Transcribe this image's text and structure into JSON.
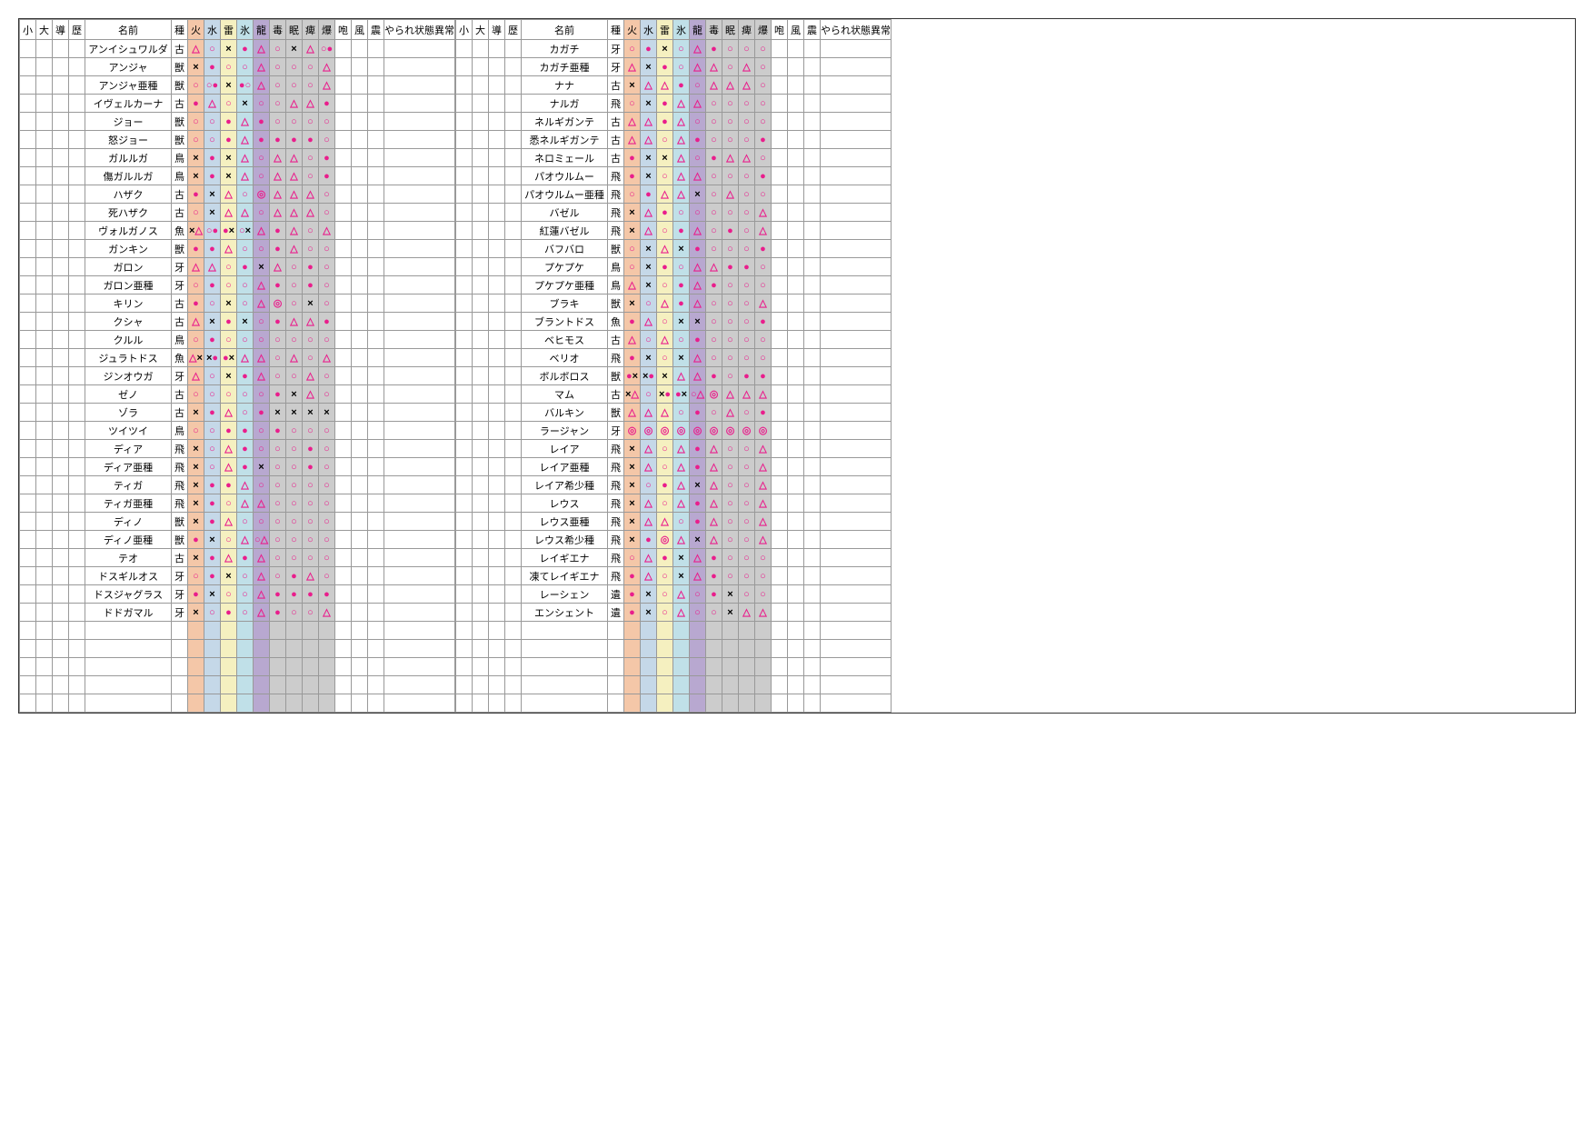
{
  "headers": [
    "小",
    "大",
    "導",
    "歴",
    "名前",
    "種",
    "火",
    "水",
    "雷",
    "氷",
    "龍",
    "毒",
    "眠",
    "痺",
    "爆",
    "咆",
    "風",
    "震",
    "やられ状態異常"
  ],
  "header_classes": [
    "c-sm",
    "c-sm",
    "c-sm",
    "c-sm",
    "c-name",
    "c-type",
    "c-elem fire",
    "c-elem water",
    "c-elem thunder",
    "c-elem ice",
    "c-elem dragon",
    "c-stat poison",
    "c-stat sleep",
    "c-stat para",
    "c-stat blast",
    "c-sm",
    "c-sm",
    "c-sm",
    "c-wide"
  ],
  "cell_classes": [
    "",
    "",
    "",
    "",
    "fire",
    "water",
    "thunder",
    "ice",
    "dragon",
    "poison",
    "sleep",
    "para",
    "blast",
    "",
    "",
    "",
    ""
  ],
  "colors": {
    "tri": "#e91e8c",
    "circ": "#e91e8c",
    "fcirc": "#e91e8c",
    "dcirc": "#e91e8c",
    "x": "#000",
    "empty": ""
  },
  "left": [
    {
      "n": "アンイシュワルダ",
      "t": "古",
      "e": [
        "△",
        "○",
        "×",
        "●",
        "△",
        "○",
        "×",
        "△",
        "○●"
      ]
    },
    {
      "n": "アンジャ",
      "t": "獣",
      "e": [
        "×",
        "●",
        "○",
        "○",
        "△",
        "○",
        "○",
        "○",
        "△"
      ]
    },
    {
      "n": "アンジャ亜種",
      "t": "獣",
      "e": [
        "○",
        "○●",
        "×",
        "●○",
        "△",
        "○",
        "○",
        "○",
        "△"
      ]
    },
    {
      "n": "イヴェルカーナ",
      "t": "古",
      "e": [
        "●",
        "△",
        "○",
        "×",
        "○",
        "○",
        "△",
        "△",
        "●"
      ]
    },
    {
      "n": "ジョー",
      "t": "獣",
      "e": [
        "○",
        "○",
        "●",
        "△",
        "●",
        "○",
        "○",
        "○",
        "○"
      ]
    },
    {
      "n": "怒ジョー",
      "t": "獣",
      "e": [
        "○",
        "○",
        "●",
        "△",
        "●",
        "●",
        "●",
        "●",
        "○"
      ]
    },
    {
      "n": "ガルルガ",
      "t": "鳥",
      "e": [
        "×",
        "●",
        "×",
        "△",
        "○",
        "△",
        "△",
        "○",
        "●"
      ]
    },
    {
      "n": "傷ガルルガ",
      "t": "鳥",
      "e": [
        "×",
        "●",
        "×",
        "△",
        "○",
        "△",
        "△",
        "○",
        "●"
      ]
    },
    {
      "n": "ハザク",
      "t": "古",
      "e": [
        "●",
        "×",
        "△",
        "○",
        "◎",
        "△",
        "△",
        "△",
        "○"
      ]
    },
    {
      "n": "死ハザク",
      "t": "古",
      "e": [
        "○",
        "×",
        "△",
        "△",
        "○",
        "△",
        "△",
        "△",
        "○"
      ]
    },
    {
      "n": "ヴォルガノス",
      "t": "魚",
      "e": [
        "×△",
        "○●",
        "●×",
        "○×",
        "△",
        "●",
        "△",
        "○",
        "△"
      ]
    },
    {
      "n": "ガンキン",
      "t": "獣",
      "e": [
        "●",
        "●",
        "△",
        "○",
        "○",
        "●",
        "△",
        "○",
        "○"
      ]
    },
    {
      "n": "ガロン",
      "t": "牙",
      "e": [
        "△",
        "△",
        "○",
        "●",
        "×",
        "△",
        "○",
        "●",
        "○"
      ]
    },
    {
      "n": "ガロン亜種",
      "t": "牙",
      "e": [
        "○",
        "●",
        "○",
        "○",
        "△",
        "●",
        "○",
        "●",
        "○"
      ]
    },
    {
      "n": "キリン",
      "t": "古",
      "e": [
        "●",
        "○",
        "×",
        "○",
        "△",
        "◎",
        "○",
        "×",
        "○"
      ]
    },
    {
      "n": "クシャ",
      "t": "古",
      "e": [
        "△",
        "×",
        "●",
        "×",
        "○",
        "●",
        "△",
        "△",
        "●"
      ]
    },
    {
      "n": "クルル",
      "t": "鳥",
      "e": [
        "○",
        "●",
        "○",
        "○",
        "○",
        "○",
        "○",
        "○",
        "○"
      ]
    },
    {
      "n": "ジュラトドス",
      "t": "魚",
      "e": [
        "△×",
        "×●",
        "●×",
        "△",
        "△",
        "○",
        "△",
        "○",
        "△"
      ]
    },
    {
      "n": "ジンオウガ",
      "t": "牙",
      "e": [
        "△",
        "○",
        "×",
        "●",
        "△",
        "○",
        "○",
        "△",
        "○"
      ]
    },
    {
      "n": "ゼノ",
      "t": "古",
      "e": [
        "○",
        "○",
        "○",
        "○",
        "○",
        "●",
        "×",
        "△",
        "○"
      ]
    },
    {
      "n": "ゾラ",
      "t": "古",
      "e": [
        "×",
        "●",
        "△",
        "○",
        "●",
        "×",
        "×",
        "×",
        "×"
      ]
    },
    {
      "n": "ツイツイ",
      "t": "鳥",
      "e": [
        "○",
        "○",
        "●",
        "●",
        "○",
        "●",
        "○",
        "○",
        "○"
      ]
    },
    {
      "n": "ディア",
      "t": "飛",
      "e": [
        "×",
        "○",
        "△",
        "●",
        "○",
        "○",
        "○",
        "●",
        "○"
      ]
    },
    {
      "n": "ディア亜種",
      "t": "飛",
      "e": [
        "×",
        "○",
        "△",
        "●",
        "×",
        "○",
        "○",
        "●",
        "○"
      ]
    },
    {
      "n": "ティガ",
      "t": "飛",
      "e": [
        "×",
        "●",
        "●",
        "△",
        "○",
        "○",
        "○",
        "○",
        "○"
      ]
    },
    {
      "n": "ティガ亜種",
      "t": "飛",
      "e": [
        "×",
        "●",
        "○",
        "△",
        "△",
        "○",
        "○",
        "○",
        "○"
      ]
    },
    {
      "n": "ディノ",
      "t": "獣",
      "e": [
        "×",
        "●",
        "△",
        "○",
        "○",
        "○",
        "○",
        "○",
        "○"
      ]
    },
    {
      "n": "ディノ亜種",
      "t": "獣",
      "e": [
        "●",
        "×",
        "○",
        "△",
        "○△",
        "○",
        "○",
        "○",
        "○"
      ]
    },
    {
      "n": "テオ",
      "t": "古",
      "e": [
        "×",
        "●",
        "△",
        "●",
        "△",
        "○",
        "○",
        "○",
        "○"
      ]
    },
    {
      "n": "ドスギルオス",
      "t": "牙",
      "e": [
        "○",
        "●",
        "×",
        "○",
        "△",
        "○",
        "●",
        "△",
        "○"
      ]
    },
    {
      "n": "ドスジャグラス",
      "t": "牙",
      "e": [
        "●",
        "×",
        "○",
        "○",
        "△",
        "●",
        "●",
        "●",
        "●"
      ]
    },
    {
      "n": "ドドガマル",
      "t": "牙",
      "e": [
        "×",
        "○",
        "●",
        "○",
        "△",
        "●",
        "○",
        "○",
        "△"
      ]
    }
  ],
  "right": [
    {
      "n": "カガチ",
      "t": "牙",
      "e": [
        "○",
        "●",
        "×",
        "○",
        "△",
        "●",
        "○",
        "○",
        "○"
      ]
    },
    {
      "n": "カガチ亜種",
      "t": "牙",
      "e": [
        "△",
        "×",
        "●",
        "○",
        "△",
        "△",
        "○",
        "△",
        "○"
      ]
    },
    {
      "n": "ナナ",
      "t": "古",
      "e": [
        "×",
        "△",
        "△",
        "●",
        "○",
        "△",
        "△",
        "△",
        "○"
      ]
    },
    {
      "n": "ナルガ",
      "t": "飛",
      "e": [
        "○",
        "×",
        "●",
        "△",
        "△",
        "○",
        "○",
        "○",
        "○"
      ]
    },
    {
      "n": "ネルギガンテ",
      "t": "古",
      "e": [
        "△",
        "△",
        "●",
        "△",
        "○",
        "○",
        "○",
        "○",
        "○"
      ]
    },
    {
      "n": "悉ネルギガンテ",
      "t": "古",
      "e": [
        "△",
        "△",
        "○",
        "△",
        "●",
        "○",
        "○",
        "○",
        "●"
      ]
    },
    {
      "n": "ネロミェール",
      "t": "古",
      "e": [
        "●",
        "×",
        "×",
        "△",
        "○",
        "●",
        "△",
        "△",
        "○"
      ]
    },
    {
      "n": "パオウルムー",
      "t": "飛",
      "e": [
        "●",
        "×",
        "○",
        "△",
        "△",
        "○",
        "○",
        "○",
        "●"
      ]
    },
    {
      "n": "パオウルムー亜種",
      "t": "飛",
      "e": [
        "○",
        "●",
        "△",
        "△",
        "×",
        "○",
        "△",
        "○",
        "○"
      ]
    },
    {
      "n": "バゼル",
      "t": "飛",
      "e": [
        "×",
        "△",
        "●",
        "○",
        "○",
        "○",
        "○",
        "○",
        "△"
      ]
    },
    {
      "n": "紅蓮バゼル",
      "t": "飛",
      "e": [
        "×",
        "△",
        "○",
        "●",
        "△",
        "○",
        "●",
        "○",
        "△"
      ]
    },
    {
      "n": "バフバロ",
      "t": "獣",
      "e": [
        "○",
        "×",
        "△",
        "×",
        "●",
        "○",
        "○",
        "○",
        "●"
      ]
    },
    {
      "n": "プケプケ",
      "t": "鳥",
      "e": [
        "○",
        "×",
        "●",
        "○",
        "△",
        "△",
        "●",
        "●",
        "○"
      ]
    },
    {
      "n": "プケプケ亜種",
      "t": "鳥",
      "e": [
        "△",
        "×",
        "○",
        "●",
        "△",
        "●",
        "○",
        "○",
        "○"
      ]
    },
    {
      "n": "ブラキ",
      "t": "獣",
      "e": [
        "×",
        "○",
        "△",
        "●",
        "△",
        "○",
        "○",
        "○",
        "△"
      ]
    },
    {
      "n": "ブラントドス",
      "t": "魚",
      "e": [
        "●",
        "△",
        "○",
        "×",
        "×",
        "○",
        "○",
        "○",
        "●"
      ]
    },
    {
      "n": "ベヒモス",
      "t": "古",
      "e": [
        "△",
        "○",
        "△",
        "○",
        "●",
        "○",
        "○",
        "○",
        "○"
      ]
    },
    {
      "n": "ベリオ",
      "t": "飛",
      "e": [
        "●",
        "×",
        "○",
        "×",
        "△",
        "○",
        "○",
        "○",
        "○"
      ]
    },
    {
      "n": "ボルボロス",
      "t": "獣",
      "e": [
        "●×",
        "×●",
        "×",
        "△",
        "△",
        "●",
        "○",
        "●",
        "●"
      ]
    },
    {
      "n": "マム",
      "t": "古",
      "e": [
        "×△",
        "○",
        "×●",
        "●×",
        "○△",
        "◎",
        "△",
        "△",
        "△"
      ]
    },
    {
      "n": "バルキン",
      "t": "獣",
      "e": [
        "△",
        "△",
        "△",
        "○",
        "●",
        "○",
        "△",
        "○",
        "●"
      ]
    },
    {
      "n": "ラージャン",
      "t": "牙",
      "e": [
        "◎",
        "◎",
        "◎",
        "◎",
        "◎",
        "◎",
        "◎",
        "◎",
        "◎"
      ]
    },
    {
      "n": "レイア",
      "t": "飛",
      "e": [
        "×",
        "△",
        "○",
        "△",
        "●",
        "△",
        "○",
        "○",
        "△"
      ]
    },
    {
      "n": "レイア亜種",
      "t": "飛",
      "e": [
        "×",
        "△",
        "○",
        "△",
        "●",
        "△",
        "○",
        "○",
        "△"
      ]
    },
    {
      "n": "レイア希少種",
      "t": "飛",
      "e": [
        "×",
        "○",
        "●",
        "△",
        "×",
        "△",
        "○",
        "○",
        "△"
      ]
    },
    {
      "n": "レウス",
      "t": "飛",
      "e": [
        "×",
        "△",
        "○",
        "△",
        "●",
        "△",
        "○",
        "○",
        "△"
      ]
    },
    {
      "n": "レウス亜種",
      "t": "飛",
      "e": [
        "×",
        "△",
        "△",
        "○",
        "●",
        "△",
        "○",
        "○",
        "△"
      ]
    },
    {
      "n": "レウス希少種",
      "t": "飛",
      "e": [
        "×",
        "●",
        "◎",
        "△",
        "×",
        "△",
        "○",
        "○",
        "△"
      ]
    },
    {
      "n": "レイギエナ",
      "t": "飛",
      "e": [
        "○",
        "△",
        "●",
        "×",
        "△",
        "●",
        "○",
        "○",
        "○"
      ]
    },
    {
      "n": "凍てレイギエナ",
      "t": "飛",
      "e": [
        "●",
        "△",
        "○",
        "×",
        "△",
        "●",
        "○",
        "○",
        "○"
      ]
    },
    {
      "n": "レーシェン",
      "t": "遺",
      "e": [
        "●",
        "×",
        "○",
        "△",
        "○",
        "●",
        "×",
        "○",
        "○"
      ]
    },
    {
      "n": "エンシェント",
      "t": "遺",
      "e": [
        "●",
        "×",
        "○",
        "△",
        "○",
        "○",
        "×",
        "△",
        "△"
      ]
    }
  ],
  "empty_rows": 5
}
